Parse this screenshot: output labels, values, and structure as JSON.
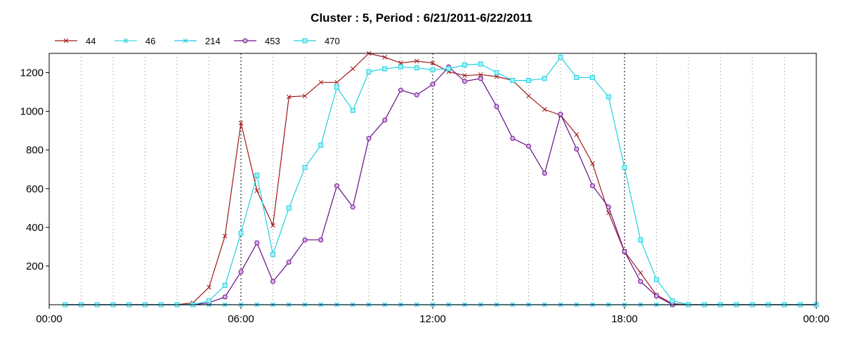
{
  "chart_data": {
    "type": "line",
    "title": "Cluster : 5, Period : 6/21/2011-6/22/2011",
    "xlabel": "",
    "ylabel": "",
    "x_ticks": [
      "00:00",
      "06:00",
      "12:00",
      "18:00",
      "00:00"
    ],
    "y_ticks": [
      200,
      400,
      600,
      800,
      1000,
      1200
    ],
    "ylim": [
      0,
      1300
    ],
    "xlim_hours": [
      0,
      24
    ],
    "grid": true,
    "legend_position": "top-left",
    "x_hours": [
      0.5,
      1,
      1.5,
      2,
      2.5,
      3,
      3.5,
      4,
      4.5,
      5,
      5.5,
      6,
      6.5,
      7,
      7.5,
      8,
      8.5,
      9,
      9.5,
      10,
      10.5,
      11,
      11.5,
      12,
      12.5,
      13,
      13.5,
      14,
      14.5,
      15,
      15.5,
      16,
      16.5,
      17,
      17.5,
      18,
      18.5,
      19,
      19.5,
      20,
      20.5,
      21,
      21.5,
      22,
      22.5,
      23,
      23.5,
      24
    ],
    "series": [
      {
        "name": "44",
        "color": "#a01818",
        "marker": "x",
        "values": [
          0,
          0,
          0,
          0,
          0,
          0,
          0,
          0,
          10,
          90,
          355,
          940,
          590,
          410,
          1075,
          1080,
          1150,
          1150,
          1220,
          1300,
          1280,
          1250,
          1260,
          1250,
          1205,
          1185,
          1190,
          1180,
          1160,
          1080,
          1010,
          980,
          880,
          730,
          475,
          275,
          165,
          50,
          5,
          0,
          0,
          0,
          0,
          0,
          0,
          0,
          0,
          0
        ]
      },
      {
        "name": "46",
        "color": "#40d8e0",
        "marker": "star",
        "values": [
          0,
          0,
          0,
          0,
          0,
          0,
          0,
          0,
          0,
          0,
          0,
          0,
          0,
          0,
          0,
          0,
          0,
          0,
          0,
          0,
          0,
          0,
          0,
          0,
          0,
          0,
          0,
          0,
          0,
          0,
          0,
          0,
          0,
          0,
          0,
          0,
          0,
          0,
          0,
          0,
          0,
          0,
          0,
          0,
          0,
          0,
          0,
          0
        ]
      },
      {
        "name": "214",
        "color": "#20c8e0",
        "marker": "x",
        "values": [
          0,
          0,
          0,
          0,
          0,
          0,
          0,
          0,
          0,
          0,
          0,
          0,
          0,
          0,
          0,
          0,
          0,
          0,
          0,
          0,
          0,
          0,
          0,
          0,
          0,
          0,
          0,
          0,
          0,
          0,
          0,
          0,
          0,
          0,
          0,
          0,
          0,
          0,
          0,
          0,
          0,
          0,
          0,
          0,
          0,
          0,
          0,
          0
        ]
      },
      {
        "name": "453",
        "color": "#6a0a8a",
        "marker": "circle",
        "values": [
          0,
          0,
          0,
          0,
          0,
          0,
          0,
          0,
          0,
          10,
          40,
          170,
          320,
          120,
          220,
          335,
          335,
          615,
          505,
          860,
          955,
          1110,
          1085,
          1140,
          1230,
          1155,
          1170,
          1025,
          860,
          820,
          680,
          985,
          805,
          615,
          505,
          275,
          120,
          45,
          0,
          0,
          0,
          0,
          0,
          0,
          0,
          0,
          0,
          0
        ]
      },
      {
        "name": "470",
        "color": "#20d0e0",
        "marker": "square",
        "values": [
          0,
          0,
          0,
          0,
          0,
          0,
          0,
          0,
          0,
          20,
          100,
          370,
          670,
          260,
          500,
          710,
          825,
          1125,
          1005,
          1205,
          1220,
          1230,
          1225,
          1215,
          1220,
          1240,
          1245,
          1200,
          1160,
          1160,
          1170,
          1280,
          1175,
          1175,
          1075,
          710,
          335,
          130,
          20,
          0,
          0,
          0,
          0,
          0,
          0,
          0,
          0,
          0
        ]
      }
    ]
  }
}
